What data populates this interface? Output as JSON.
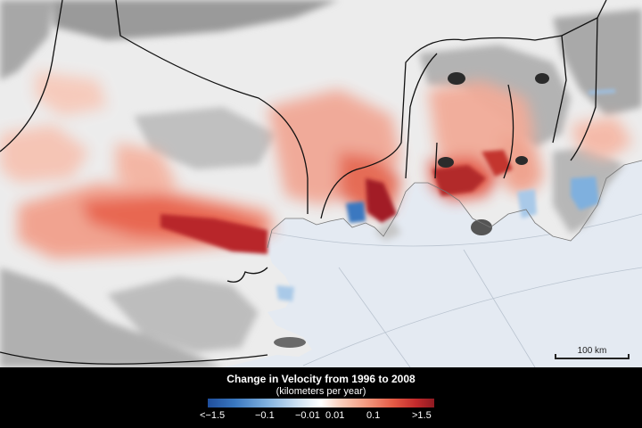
{
  "map": {
    "scale_label": "100 km"
  },
  "legend": {
    "title": "Change in Velocity from 1996 to 2008",
    "subtitle": "(kilometers per year)",
    "ticks": [
      "<−1.5",
      "−0.1",
      "−0.01",
      "0.01",
      "0.1",
      ">1.5"
    ]
  },
  "colors": {
    "ocean": "#e4eaf2",
    "land": "#ededed",
    "faster": "#d8402f",
    "slower": "#3a78c0"
  }
}
